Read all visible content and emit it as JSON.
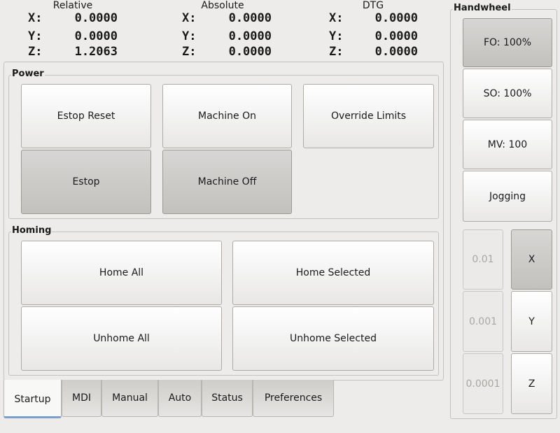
{
  "dro": [
    {
      "title": "Relative",
      "rows": [
        {
          "axis": "X:",
          "value": "0.0000"
        },
        {
          "axis": "Y:",
          "value": "0.0000"
        },
        {
          "axis": "Z:",
          "value": "1.2063"
        }
      ]
    },
    {
      "title": "Absolute",
      "rows": [
        {
          "axis": "X:",
          "value": "0.0000"
        },
        {
          "axis": "Y:",
          "value": "0.0000"
        },
        {
          "axis": "Z:",
          "value": "0.0000"
        }
      ]
    },
    {
      "title": "DTG",
      "rows": [
        {
          "axis": "X:",
          "value": "0.0000"
        },
        {
          "axis": "Y:",
          "value": "0.0000"
        },
        {
          "axis": "Z:",
          "value": "0.0000"
        }
      ]
    }
  ],
  "power": {
    "title": "Power",
    "estop_reset": "Estop Reset",
    "machine_on": "Machine On",
    "override_limits": "Override Limits",
    "estop": "Estop",
    "machine_off": "Machine Off"
  },
  "homing": {
    "title": "Homing",
    "home_all": "Home All",
    "home_selected": "Home Selected",
    "unhome_all": "Unhome All",
    "unhome_selected": "Unhome Selected"
  },
  "tabs": [
    "Startup",
    "MDI",
    "Manual",
    "Auto",
    "Status",
    "Preferences"
  ],
  "active_tab": "Startup",
  "handwheel": {
    "title": "Handwheel",
    "fo": "FO: 100%",
    "so": "SO: 100%",
    "mv": "MV: 100",
    "jogging": "Jogging",
    "increments": [
      "0.01",
      "0.001",
      "0.0001"
    ],
    "axes": [
      "X",
      "Y",
      "Z"
    ],
    "selected_axis": "X"
  }
}
